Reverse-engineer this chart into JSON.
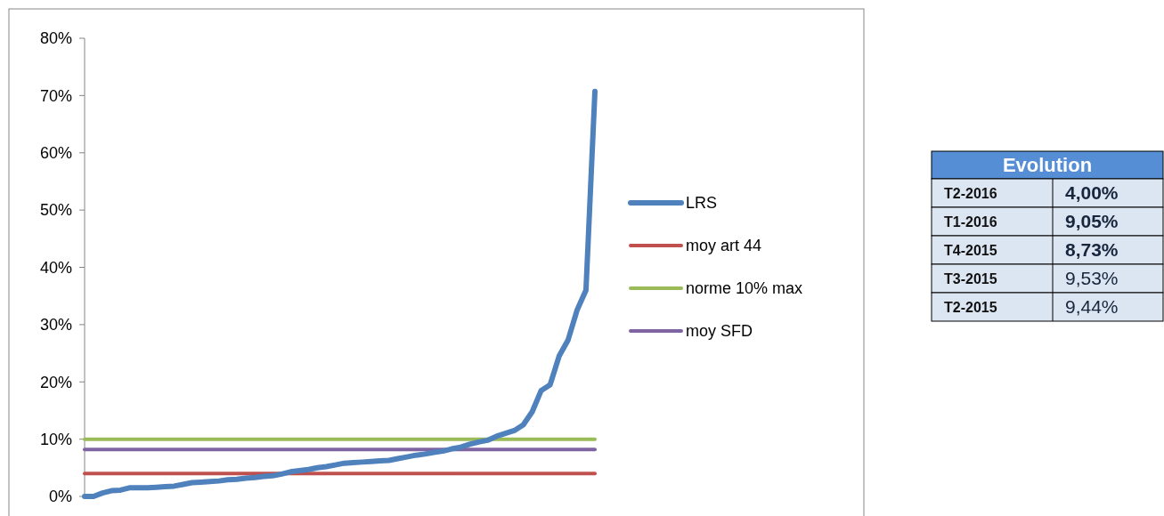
{
  "chart_data": [
    {
      "type": "line",
      "categories": [
        null,
        null,
        null,
        null,
        null,
        null,
        null,
        null,
        null,
        null,
        null,
        null,
        null,
        null,
        null,
        null,
        null,
        null,
        null,
        null,
        null,
        null,
        null,
        null,
        null,
        null,
        null,
        null,
        null,
        null,
        null,
        null,
        null,
        null,
        null,
        null,
        null,
        null,
        null,
        null,
        null,
        null,
        null,
        null,
        null,
        null,
        null,
        null,
        null,
        null,
        null,
        null,
        null,
        null,
        null,
        null,
        null,
        null
      ],
      "series": [
        {
          "name": "LRS",
          "color": "#4f81bd",
          "values": [
            0,
            0,
            0.6,
            1.0,
            1.1,
            1.5,
            1.5,
            1.5,
            1.6,
            1.7,
            1.8,
            2.1,
            2.4,
            2.5,
            2.6,
            2.7,
            2.9,
            3.0,
            3.2,
            3.3,
            3.5,
            3.6,
            3.9,
            4.3,
            4.5,
            4.7,
            5.0,
            5.2,
            5.5,
            5.8,
            5.9,
            6.0,
            6.1,
            6.2,
            6.3,
            6.6,
            6.9,
            7.2,
            7.4,
            7.7,
            7.9,
            8.3,
            8.6,
            9.1,
            9.5,
            9.8,
            10.5,
            11.0,
            11.5,
            12.5,
            14.8,
            18.5,
            19.5,
            24.5,
            27.3,
            32.5,
            36,
            70.7
          ]
        },
        {
          "name": "moy art 44",
          "color": "#c0504d",
          "values": [
            4,
            4,
            4,
            4,
            4,
            4,
            4,
            4,
            4,
            4,
            4,
            4,
            4,
            4,
            4,
            4,
            4,
            4,
            4,
            4,
            4,
            4,
            4,
            4,
            4,
            4,
            4,
            4,
            4,
            4,
            4,
            4,
            4,
            4,
            4,
            4,
            4,
            4,
            4,
            4,
            4,
            4,
            4,
            4,
            4,
            4,
            4,
            4,
            4,
            4,
            4,
            4,
            4,
            4,
            4,
            4,
            4,
            4
          ]
        },
        {
          "name": "norme 10% max",
          "color": "#9bbb59",
          "values": [
            10,
            10,
            10,
            10,
            10,
            10,
            10,
            10,
            10,
            10,
            10,
            10,
            10,
            10,
            10,
            10,
            10,
            10,
            10,
            10,
            10,
            10,
            10,
            10,
            10,
            10,
            10,
            10,
            10,
            10,
            10,
            10,
            10,
            10,
            10,
            10,
            10,
            10,
            10,
            10,
            10,
            10,
            10,
            10,
            10,
            10,
            10,
            10,
            10,
            10,
            10,
            10,
            10,
            10,
            10,
            10,
            10,
            10
          ]
        },
        {
          "name": "moy SFD",
          "color": "#8064a2",
          "values": [
            8.2,
            8.2,
            8.2,
            8.2,
            8.2,
            8.2,
            8.2,
            8.2,
            8.2,
            8.2,
            8.2,
            8.2,
            8.2,
            8.2,
            8.2,
            8.2,
            8.2,
            8.2,
            8.2,
            8.2,
            8.2,
            8.2,
            8.2,
            8.2,
            8.2,
            8.2,
            8.2,
            8.2,
            8.2,
            8.2,
            8.2,
            8.2,
            8.2,
            8.2,
            8.2,
            8.2,
            8.2,
            8.2,
            8.2,
            8.2,
            8.2,
            8.2,
            8.2,
            8.2,
            8.2,
            8.2,
            8.2,
            8.2,
            8.2,
            8.2,
            8.2,
            8.2,
            8.2,
            8.2,
            8.2,
            8.2,
            8.2,
            8.2
          ]
        }
      ],
      "ylim": [
        0,
        80
      ],
      "yticks": [
        {
          "value": 0,
          "label": "0%"
        },
        {
          "value": 10,
          "label": "10%"
        },
        {
          "value": 20,
          "label": "20%"
        },
        {
          "value": 30,
          "label": "30%"
        },
        {
          "value": 40,
          "label": "40%"
        },
        {
          "value": 50,
          "label": "50%"
        },
        {
          "value": 60,
          "label": "60%"
        },
        {
          "value": 70,
          "label": "70%"
        },
        {
          "value": 80,
          "label": "80%"
        }
      ],
      "grid": false,
      "legend": "right",
      "marker": "none",
      "line_style": "solid"
    },
    {
      "type": "other",
      "title": "Evolution",
      "annotations": [
        "T2-2016",
        "4,00%",
        "T1-2016",
        "9,05%",
        "T4-2015",
        "8,73%",
        "T3-2015",
        "9,53%",
        "T2-2015",
        "9,44%"
      ]
    }
  ]
}
